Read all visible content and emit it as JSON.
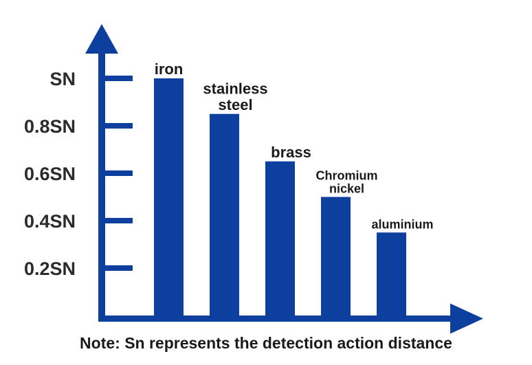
{
  "chart_data": {
    "type": "bar",
    "categories": [
      "iron",
      "stainless steel",
      "brass",
      "Chromium nickel",
      "aluminium"
    ],
    "category_label_lines": [
      [
        "iron"
      ],
      [
        "stainless",
        "steel"
      ],
      [
        "brass"
      ],
      [
        "Chromium",
        "nickel"
      ],
      [
        "aluminium"
      ]
    ],
    "values": [
      1.0,
      0.85,
      0.65,
      0.5,
      0.35
    ],
    "unit": "SN",
    "yticks": [
      {
        "value": 1.0,
        "label": "SN"
      },
      {
        "value": 0.8,
        "label": "0.8SN"
      },
      {
        "value": 0.6,
        "label": "0.6SN"
      },
      {
        "value": 0.4,
        "label": "0.4SN"
      },
      {
        "value": 0.2,
        "label": "0.2SN"
      }
    ],
    "ylim": [
      0,
      1
    ],
    "grid": false,
    "bar_color": "#0d3f9e",
    "axis_color": "#0d3f9e"
  },
  "note": "Note: Sn represents the detection action distance"
}
